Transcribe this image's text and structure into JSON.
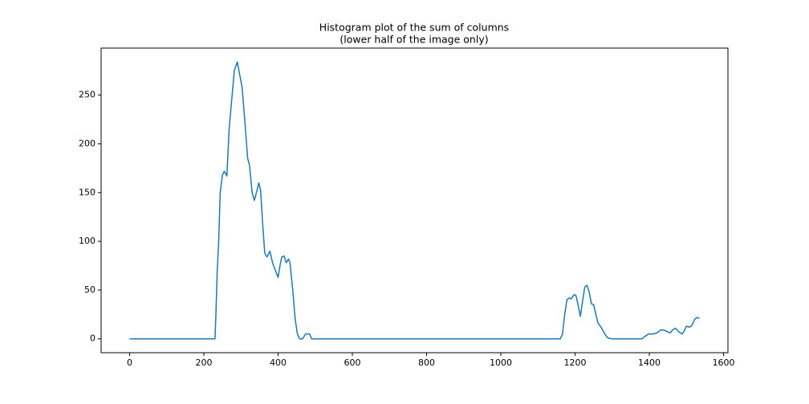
{
  "chart_data": {
    "type": "line",
    "title": "Histogram plot of the sum of columns",
    "subtitle": "(lower half of the image only)",
    "x": [
      0,
      230,
      232,
      236,
      240,
      244,
      250,
      255,
      262,
      268,
      275,
      282,
      290,
      297,
      303,
      310,
      318,
      323,
      330,
      336,
      343,
      348,
      353,
      358,
      364,
      370,
      378,
      385,
      393,
      400,
      405,
      410,
      416,
      422,
      428,
      432,
      440,
      446,
      452,
      458,
      466,
      474,
      485,
      490,
      1160,
      1166,
      1172,
      1178,
      1184,
      1190,
      1196,
      1202,
      1208,
      1214,
      1220,
      1226,
      1232,
      1238,
      1244,
      1250,
      1256,
      1262,
      1270,
      1280,
      1288,
      1300,
      1380,
      1390,
      1398,
      1410,
      1420,
      1430,
      1440,
      1450,
      1456,
      1462,
      1470,
      1480,
      1488,
      1494,
      1500,
      1508,
      1515,
      1522,
      1528,
      1535
    ],
    "series": [
      {
        "color": "#1f77b4",
        "values": [
          0,
          0,
          20,
          70,
          100,
          150,
          168,
          172,
          167,
          215,
          245,
          275,
          284,
          270,
          258,
          225,
          185,
          178,
          150,
          142,
          152,
          160,
          152,
          120,
          88,
          84,
          90,
          78,
          70,
          63,
          75,
          84,
          85,
          78,
          82,
          78,
          48,
          20,
          5,
          0,
          0,
          5,
          5,
          0,
          0,
          5,
          25,
          40,
          42,
          41,
          45,
          45,
          35,
          23,
          38,
          53,
          55,
          48,
          36,
          35,
          25,
          16,
          12,
          5,
          1,
          0,
          0,
          3,
          5,
          5,
          6,
          9,
          9,
          7,
          6,
          9,
          11,
          7,
          5,
          8,
          13,
          12,
          14,
          20,
          22,
          21
        ]
      }
    ],
    "xlim": [
      -76.75,
      1611.75
    ],
    "ylim": [
      -14.2,
      298.2
    ],
    "xticks": [
      0,
      200,
      400,
      600,
      800,
      1000,
      1200,
      1400,
      1600
    ],
    "yticks": [
      0,
      50,
      100,
      150,
      200,
      250
    ],
    "grid": false
  }
}
